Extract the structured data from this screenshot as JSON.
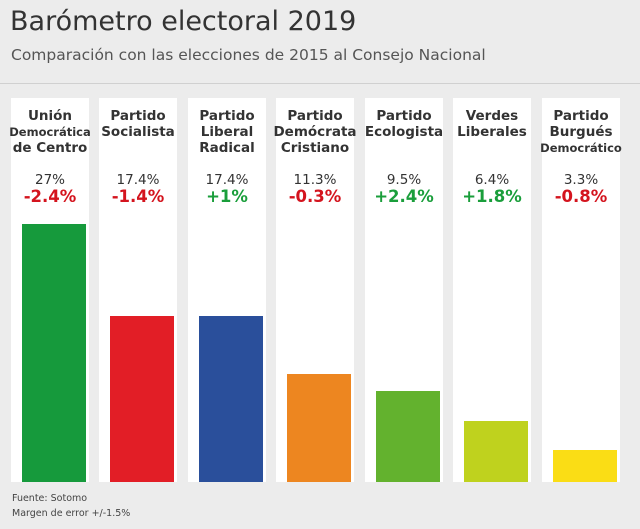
{
  "header": {
    "title": "Barómetro electoral 2019",
    "subtitle": "Comparación con las elecciones de 2015 al Consejo Nacional"
  },
  "footer": {
    "source": "Fuente: Sotomo",
    "margin": "Margen de error +/-1.5%"
  },
  "colors": {
    "positive": "#1a9e3b",
    "negative": "#d4141e"
  },
  "chart_data": {
    "type": "bar",
    "title": "Barómetro electoral 2019",
    "subtitle": "Comparación con las elecciones de 2015 al Consejo Nacional",
    "categories": [
      "Unión Democrática de Centro",
      "Partido Socialista",
      "Partido Liberal Radical",
      "Partido Demócrata Cristiano",
      "Partido Ecologista",
      "Verdes Liberales",
      "Partido Burgués Democrático"
    ],
    "values": [
      27,
      17.4,
      17.4,
      11.3,
      9.5,
      6.4,
      3.3
    ],
    "value_labels": [
      "27%",
      "17.4%",
      "17.4%",
      "11.3%",
      "9.5%",
      "6.4%",
      "3.3%"
    ],
    "changes": [
      -2.4,
      -1.4,
      1,
      -0.3,
      2.4,
      1.8,
      -0.8
    ],
    "change_labels": [
      "-2.4%",
      "-1.4%",
      "+1%",
      "-0.3%",
      "+2.4%",
      "+1.8%",
      "-0.8%"
    ],
    "bar_colors": [
      "#169a3c",
      "#e21e26",
      "#2a4f9b",
      "#ed8620",
      "#63b22e",
      "#bfd21e",
      "#fadd15"
    ],
    "ylim": [
      0,
      27
    ],
    "grid": false,
    "legend": "none"
  },
  "parties": [
    {
      "name_lines": [
        "Unión",
        "Democrática",
        "de Centro"
      ]
    },
    {
      "name_lines": [
        "Partido",
        "Socialista"
      ]
    },
    {
      "name_lines": [
        "Partido",
        "Liberal",
        "Radical"
      ]
    },
    {
      "name_lines": [
        "Partido",
        "Demócrata",
        "Cristiano"
      ]
    },
    {
      "name_lines": [
        "Partido",
        "Ecologista"
      ]
    },
    {
      "name_lines": [
        "Verdes",
        "Liberales"
      ]
    },
    {
      "name_lines": [
        "Partido",
        "Burgués",
        "Democrático"
      ]
    }
  ]
}
